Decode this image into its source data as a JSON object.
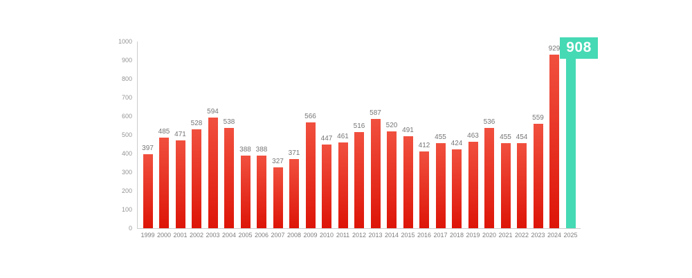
{
  "colors": {
    "bar_top": "#f1503f",
    "bar_bottom": "#dd1508",
    "highlight": "#45d9b4",
    "axis": "#cccccc",
    "value_label": "#757575",
    "tick_label": "#949494",
    "badge_text": "#ffffff"
  },
  "chart_data": {
    "type": "bar",
    "title": "",
    "xlabel": "",
    "ylabel": "",
    "categories": [
      "1999",
      "2000",
      "2001",
      "2002",
      "2003",
      "2004",
      "2005",
      "2006",
      "2007",
      "2008",
      "2009",
      "2010",
      "2011",
      "2012",
      "2013",
      "2014",
      "2015",
      "2016",
      "2017",
      "2018",
      "2019",
      "2020",
      "2021",
      "2022",
      "2023",
      "2024",
      "2025"
    ],
    "values": [
      397,
      485,
      471,
      528,
      594,
      538,
      388,
      388,
      327,
      371,
      566,
      447,
      461,
      516,
      587,
      520,
      491,
      412,
      455,
      424,
      463,
      536,
      455,
      454,
      559,
      929,
      908
    ],
    "highlight_index": 26,
    "highlight_value_label": "908",
    "ylim": [
      0,
      1000
    ],
    "yticks": [
      0,
      100,
      200,
      300,
      400,
      500,
      600,
      700,
      800,
      900,
      1000
    ],
    "grid": false,
    "legend": false
  }
}
